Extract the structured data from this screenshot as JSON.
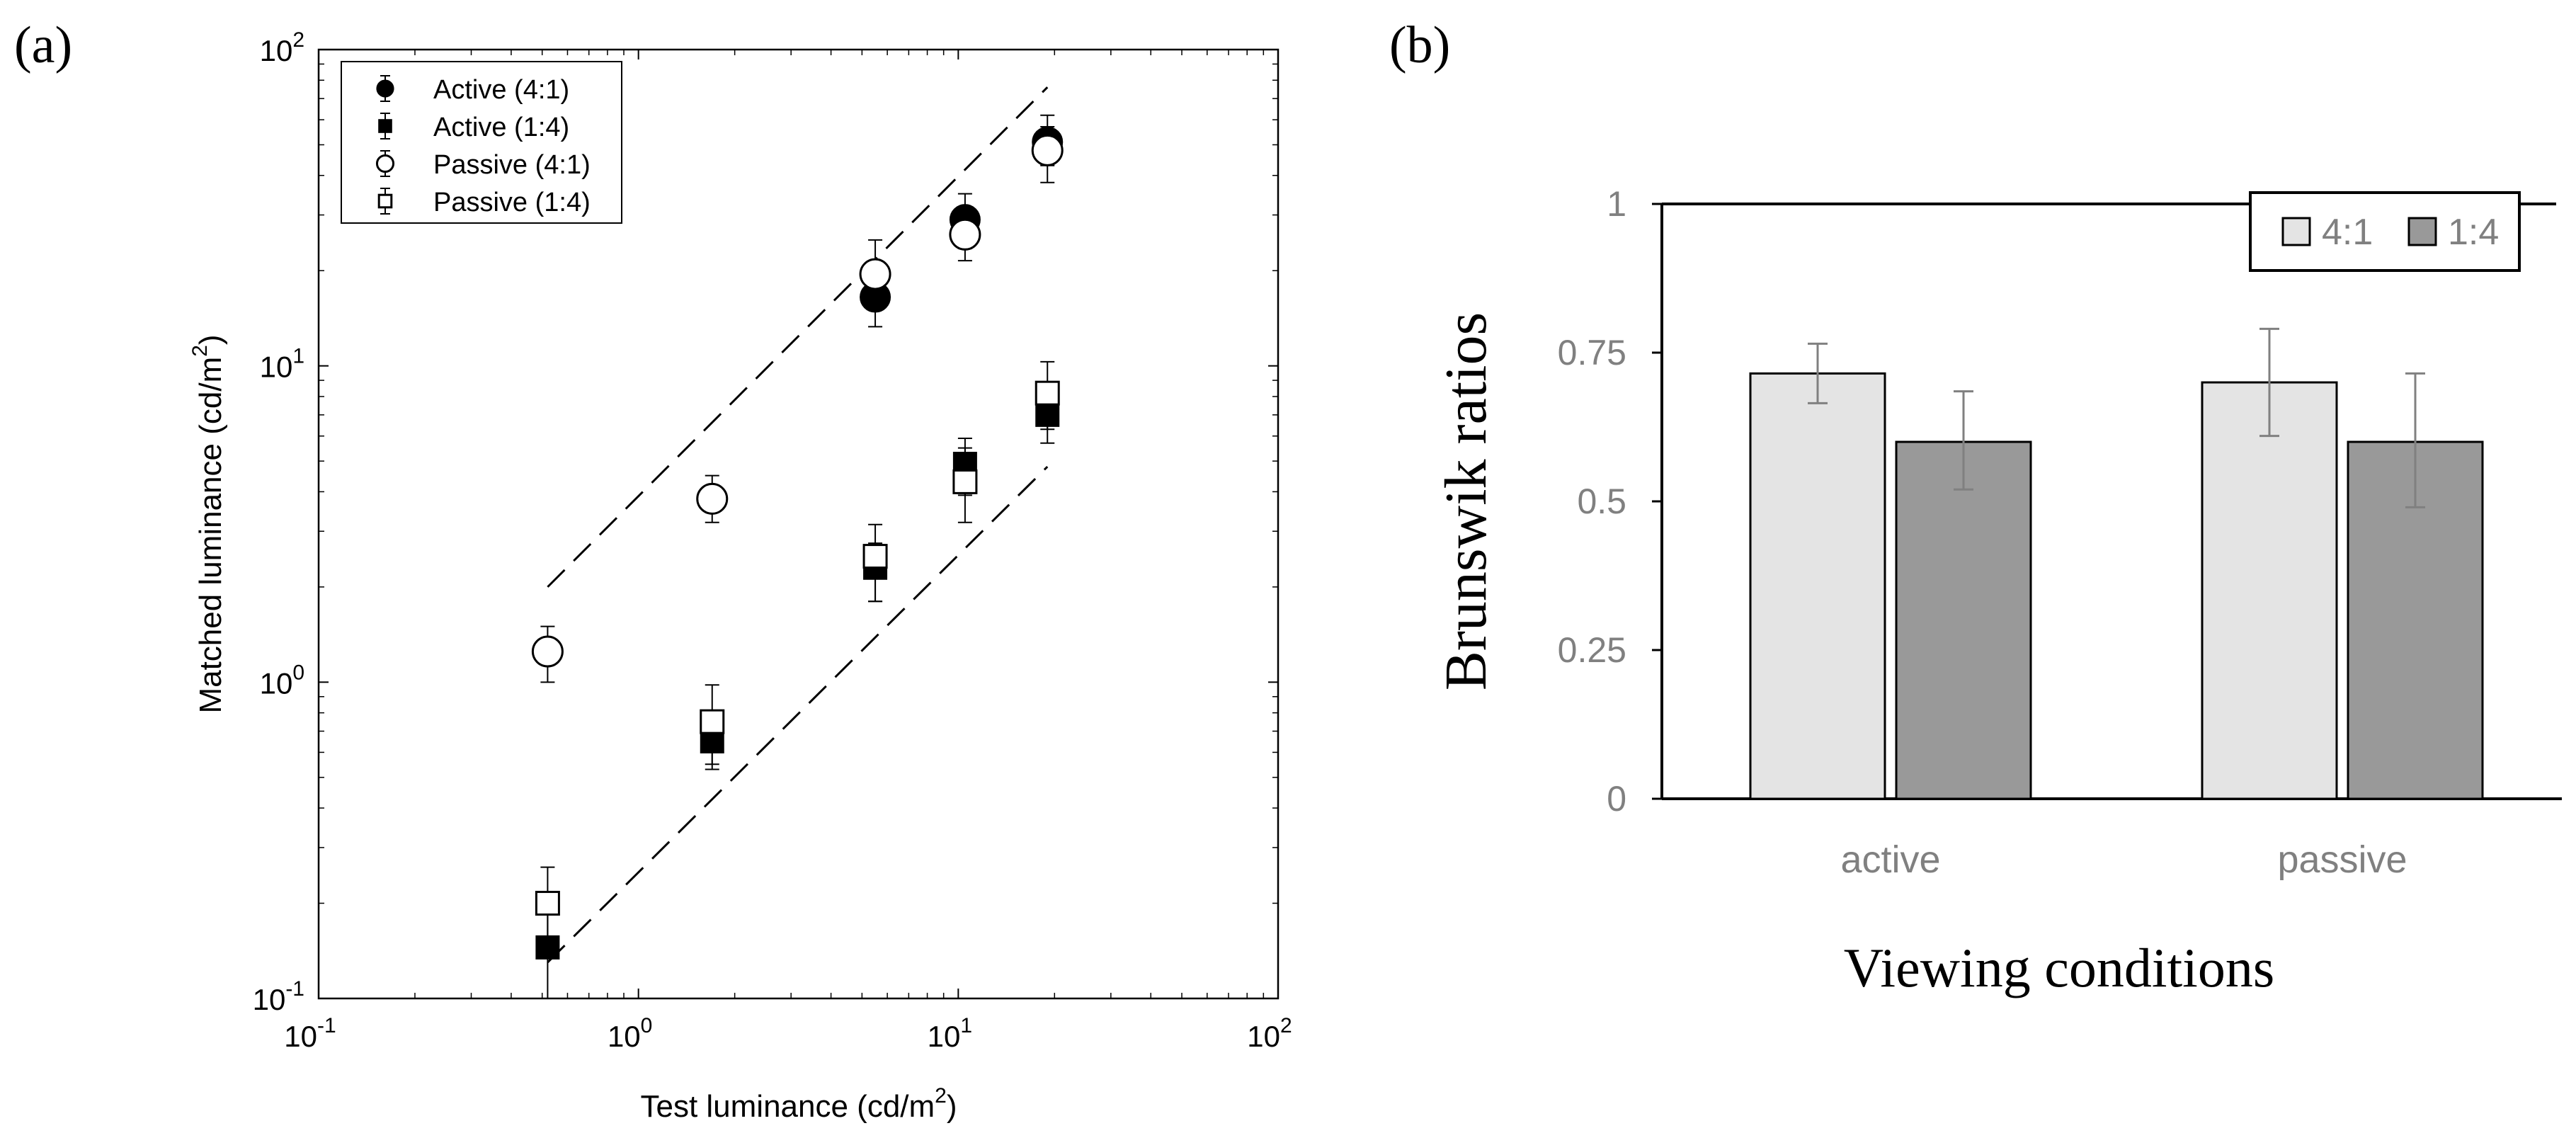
{
  "chart_data": [
    {
      "type": "scatter",
      "panel_label": "(a)",
      "xscale": "log",
      "yscale": "log",
      "xlim": [
        0.1,
        100
      ],
      "ylim": [
        0.1,
        100
      ],
      "xlabel": "Test luminance (cd/m",
      "ylabel": "Matched luminance (cd/m",
      "unit_exponent": "2",
      "unit_close": ")",
      "tick_base": "10",
      "ticks": [
        {
          "exp": "-1",
          "value": 0.1
        },
        {
          "exp": "0",
          "value": 1
        },
        {
          "exp": "1",
          "value": 10
        },
        {
          "exp": "2",
          "value": 100
        }
      ],
      "legend_position": "top-left",
      "series": [
        {
          "name": "Active (4:1)",
          "marker": "filled-circle",
          "x": [
            5.5,
            10.5,
            19
          ],
          "y": [
            16.5,
            29,
            51
          ],
          "yerr_low": [
            13.3,
            23.5,
            43
          ],
          "yerr_high": [
            20,
            35,
            62
          ]
        },
        {
          "name": "Active (1:4)",
          "marker": "filled-square",
          "x": [
            0.52,
            1.7,
            5.5,
            10.5,
            19
          ],
          "y": [
            0.145,
            0.65,
            2.3,
            4.9,
            7
          ],
          "yerr_low": [
            0.1,
            0.53,
            1.8,
            3.9,
            5.7
          ],
          "yerr_high": [
            0.19,
            0.78,
            2.75,
            5.9,
            8.7
          ]
        },
        {
          "name": "Passive (4:1)",
          "marker": "open-circle",
          "x": [
            0.52,
            1.7,
            5.5,
            10.5,
            19
          ],
          "y": [
            1.25,
            3.8,
            19.5,
            26,
            48
          ],
          "yerr_low": [
            1.0,
            3.2,
            15.5,
            21.5,
            38
          ],
          "yerr_high": [
            1.5,
            4.5,
            25,
            31,
            57
          ]
        },
        {
          "name": "Passive (1:4)",
          "marker": "open-square",
          "x": [
            0.52,
            1.7,
            5.5,
            10.5,
            19
          ],
          "y": [
            0.2,
            0.75,
            2.5,
            4.3,
            8.2
          ],
          "yerr_low": [
            0.14,
            0.55,
            1.8,
            3.2,
            6.3
          ],
          "yerr_high": [
            0.26,
            0.98,
            3.15,
            5.5,
            10.3
          ]
        }
      ],
      "reference_lines": [
        {
          "x": [
            0.52,
            19
          ],
          "y": [
            2.0,
            76
          ]
        },
        {
          "x": [
            0.52,
            19
          ],
          "y": [
            0.13,
            4.8
          ]
        }
      ]
    },
    {
      "type": "bar",
      "panel_label": "(b)",
      "categories": [
        "active",
        "passive"
      ],
      "series": [
        {
          "name": "4:1",
          "color": "#e4e4e4",
          "values": [
            0.715,
            0.7
          ],
          "err_low": [
            0.665,
            0.61
          ],
          "err_high": [
            0.765,
            0.79
          ]
        },
        {
          "name": "1:4",
          "color": "#999999",
          "values": [
            0.6,
            0.6
          ],
          "err_low": [
            0.52,
            0.49
          ],
          "err_high": [
            0.685,
            0.715
          ]
        }
      ],
      "xlabel": "Viewing conditions",
      "ylabel": "Brunswik ratios",
      "ylim": [
        0,
        1
      ],
      "yticks": [
        "0",
        "0.25",
        "0.5",
        "0.75",
        "1"
      ],
      "legend_position": "top-right"
    }
  ]
}
